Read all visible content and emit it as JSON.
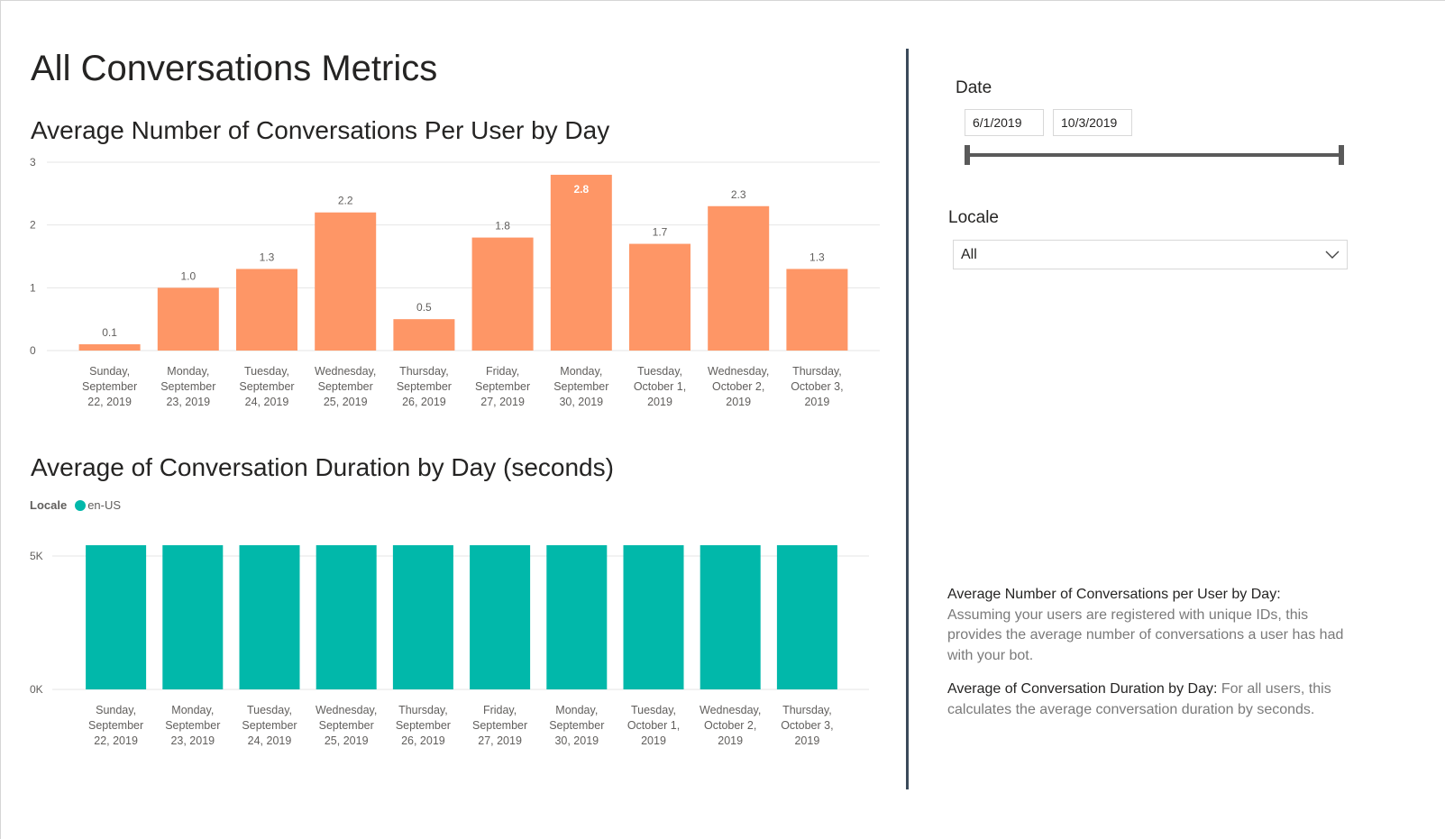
{
  "page": {
    "title": "All Conversations Metrics"
  },
  "chart_data": [
    {
      "type": "bar",
      "title": "Average Number of Conversations Per User by Day",
      "xlabel": "",
      "ylabel": "",
      "categories": [
        [
          "Sunday,",
          "September",
          "22, 2019"
        ],
        [
          "Monday,",
          "September",
          "23, 2019"
        ],
        [
          "Tuesday,",
          "September",
          "24, 2019"
        ],
        [
          "Wednesday,",
          "September",
          "25, 2019"
        ],
        [
          "Thursday,",
          "September",
          "26, 2019"
        ],
        [
          "Friday,",
          "September",
          "27, 2019"
        ],
        [
          "Monday,",
          "September",
          "30, 2019"
        ],
        [
          "Tuesday,",
          "October 1,",
          "2019"
        ],
        [
          "Wednesday,",
          "October 2,",
          "2019"
        ],
        [
          "Thursday,",
          "October 3,",
          "2019"
        ]
      ],
      "values": [
        0.1,
        1.0,
        1.3,
        2.2,
        0.5,
        1.8,
        2.8,
        1.7,
        2.3,
        1.3
      ],
      "data_labels": [
        "0.1",
        "1.0",
        "1.3",
        "2.2",
        "0.5",
        "1.8",
        "2.8",
        "1.7",
        "2.3",
        "1.3"
      ],
      "ylim": [
        0,
        3
      ],
      "yticks": [
        "0",
        "1",
        "2",
        "3"
      ],
      "grid": true,
      "color": "#fe9666"
    },
    {
      "type": "bar",
      "title": "Average of Conversation Duration by Day (seconds)",
      "xlabel": "",
      "ylabel": "",
      "legend": {
        "title": "Locale",
        "position": "top-left",
        "entries": [
          {
            "name": "en-US",
            "color": "#01b8aa"
          }
        ]
      },
      "categories": [
        [
          "Sunday,",
          "September",
          "22, 2019"
        ],
        [
          "Monday,",
          "September",
          "23, 2019"
        ],
        [
          "Tuesday,",
          "September",
          "24, 2019"
        ],
        [
          "Wednesday,",
          "September",
          "25, 2019"
        ],
        [
          "Thursday,",
          "September",
          "26, 2019"
        ],
        [
          "Friday,",
          "September",
          "27, 2019"
        ],
        [
          "Monday,",
          "September",
          "30, 2019"
        ],
        [
          "Tuesday,",
          "October 1,",
          "2019"
        ],
        [
          "Wednesday,",
          "October 2,",
          "2019"
        ],
        [
          "Thursday,",
          "October 3,",
          "2019"
        ]
      ],
      "series": [
        {
          "name": "en-US",
          "values": [
            5500,
            5500,
            5500,
            5500,
            5500,
            5500,
            5500,
            5500,
            5500,
            5500
          ]
        }
      ],
      "ylim": [
        0,
        5000
      ],
      "yticks": [
        "0K",
        "5K"
      ],
      "grid": true,
      "color": "#01b8aa"
    }
  ],
  "filters": {
    "date": {
      "label": "Date",
      "start": "6/1/2019",
      "end": "10/3/2019"
    },
    "locale": {
      "label": "Locale",
      "value": "All"
    }
  },
  "notes": [
    {
      "heading": "Average Number of Conversations per User by Day",
      "separator": ": ",
      "text": "Assuming your users are registered with unique IDs, this provides the average number of conversations a user has had with your bot."
    },
    {
      "heading": "Average of Conversation Duration by Day",
      "separator": ": ",
      "text": "For all users, this calculates the average conversation duration by seconds."
    }
  ],
  "colors": {
    "divider": "#3b4a5a",
    "grid": "#e6e6e6",
    "axis_text": "#605e5c",
    "data_label": "#605e5c"
  }
}
